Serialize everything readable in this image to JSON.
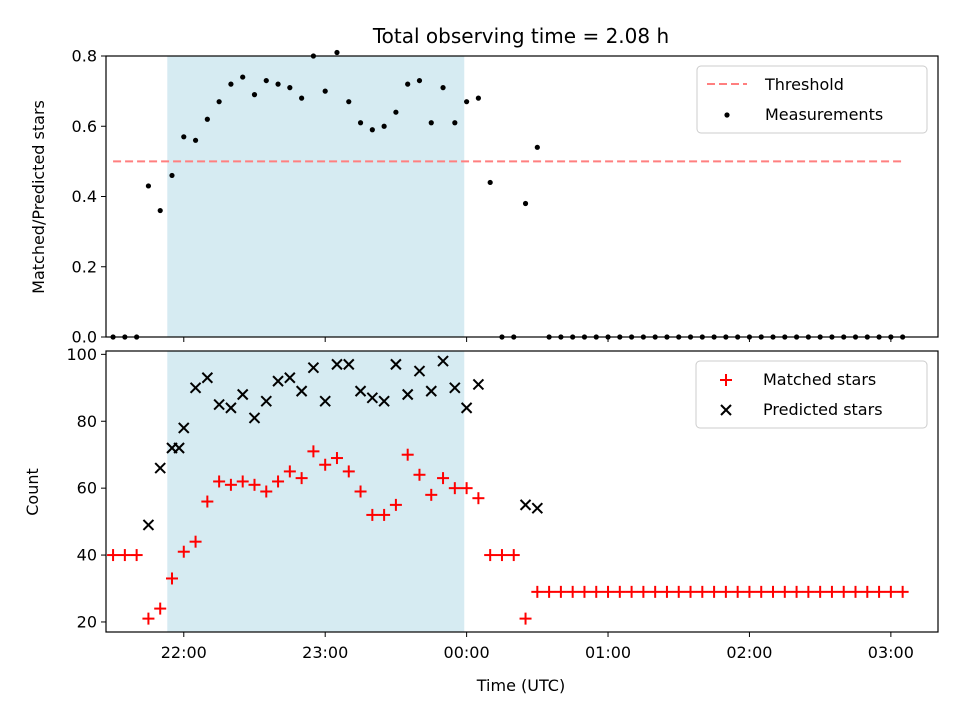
{
  "chart_data": [
    {
      "type": "scatter",
      "title": "Total observing time = 2.08 h",
      "ylabel": "Matched/Predicted stars",
      "xlim": [
        "21:27",
        "03:20"
      ],
      "ylim": [
        0,
        0.8
      ],
      "yticks": [
        "0.0",
        "0.2",
        "0.4",
        "0.6",
        "0.8"
      ],
      "xticks": [
        "22:00",
        "23:00",
        "00:00",
        "01:00",
        "02:00",
        "03:00"
      ],
      "xticks_labeled": false,
      "shaded_span": {
        "from": "21:53",
        "to": "23:59",
        "color": "#add8e6"
      },
      "legend_position": "upper right",
      "threshold": {
        "name": "Threshold",
        "value": 0.5,
        "from": "21:30",
        "to": "03:05",
        "color": "#ff7f7f",
        "style": "dashed"
      },
      "series": [
        {
          "name": "Measurements",
          "color": "#000000",
          "x": [
            "21:30",
            "21:35",
            "21:40",
            "21:45",
            "21:50",
            "21:55",
            "22:00",
            "22:05",
            "22:10",
            "22:15",
            "22:20",
            "22:25",
            "22:30",
            "22:35",
            "22:40",
            "22:45",
            "22:50",
            "22:55",
            "23:00",
            "23:05",
            "23:10",
            "23:15",
            "23:20",
            "23:25",
            "23:30",
            "23:35",
            "23:40",
            "23:45",
            "23:50",
            "23:55",
            "00:00",
            "00:05",
            "00:10",
            "00:15",
            "00:20",
            "00:25",
            "00:30",
            "00:35",
            "00:40",
            "00:45",
            "00:50",
            "00:55",
            "01:00",
            "01:05",
            "01:10",
            "01:15",
            "01:20",
            "01:25",
            "01:30",
            "01:35",
            "01:40",
            "01:45",
            "01:50",
            "01:55",
            "02:00",
            "02:05",
            "02:10",
            "02:15",
            "02:20",
            "02:25",
            "02:30",
            "02:35",
            "02:40",
            "02:45",
            "02:50",
            "02:55",
            "03:00",
            "03:05"
          ],
          "y": [
            0,
            0,
            0,
            0.43,
            0.36,
            0.46,
            0.57,
            0.56,
            0.62,
            0.67,
            0.72,
            0.74,
            0.69,
            0.73,
            0.72,
            0.71,
            0.68,
            0.8,
            0.7,
            0.81,
            0.67,
            0.61,
            0.59,
            0.6,
            0.64,
            0.72,
            0.73,
            0.61,
            0.71,
            0.61,
            0.67,
            0.68,
            0.44,
            0,
            0,
            0.38,
            0.54,
            0,
            0,
            0,
            0,
            0,
            0,
            0,
            0,
            0,
            0,
            0,
            0,
            0,
            0,
            0,
            0,
            0,
            0,
            0,
            0,
            0,
            0,
            0,
            0,
            0,
            0,
            0,
            0,
            0,
            0,
            0
          ]
        }
      ]
    },
    {
      "type": "scatter",
      "xlabel": "Time (UTC)",
      "ylabel": "Count",
      "xlim": [
        "21:27",
        "03:20"
      ],
      "ylim": [
        17,
        101
      ],
      "yticks": [
        "20",
        "40",
        "60",
        "80",
        "100"
      ],
      "xticks": [
        "22:00",
        "23:00",
        "00:00",
        "01:00",
        "02:00",
        "03:00"
      ],
      "shaded_span": {
        "from": "21:53",
        "to": "23:59",
        "color": "#add8e6"
      },
      "legend_position": "upper right",
      "series": [
        {
          "name": "Matched stars",
          "marker": "plus",
          "color": "#ff0000",
          "x": [
            "21:30",
            "21:35",
            "21:40",
            "21:45",
            "21:50",
            "21:55",
            "22:00",
            "22:05",
            "22:10",
            "22:15",
            "22:20",
            "22:25",
            "22:30",
            "22:35",
            "22:40",
            "22:45",
            "22:50",
            "22:55",
            "23:00",
            "23:05",
            "23:10",
            "23:15",
            "23:20",
            "23:25",
            "23:30",
            "23:35",
            "23:40",
            "23:45",
            "23:50",
            "23:55",
            "00:00",
            "00:05",
            "00:10",
            "00:15",
            "00:20",
            "00:25",
            "00:30",
            "00:35",
            "00:40",
            "00:45",
            "00:50",
            "00:55",
            "01:00",
            "01:05",
            "01:10",
            "01:15",
            "01:20",
            "01:25",
            "01:30",
            "01:35",
            "01:40",
            "01:45",
            "01:50",
            "01:55",
            "02:00",
            "02:05",
            "02:10",
            "02:15",
            "02:20",
            "02:25",
            "02:30",
            "02:35",
            "02:40",
            "02:45",
            "02:50",
            "02:55",
            "03:00",
            "03:05"
          ],
          "y": [
            40,
            40,
            40,
            21,
            24,
            33,
            41,
            44,
            56,
            62,
            61,
            62,
            61,
            59,
            62,
            65,
            63,
            71,
            67,
            69,
            65,
            59,
            52,
            52,
            55,
            70,
            64,
            58,
            63,
            60,
            60,
            57,
            40,
            40,
            40,
            21,
            29,
            29,
            29,
            29,
            29,
            29,
            29,
            29,
            29,
            29,
            29,
            29,
            29,
            29,
            29,
            29,
            29,
            29,
            29,
            29,
            29,
            29,
            29,
            29,
            29,
            29,
            29,
            29,
            29,
            29,
            29,
            29
          ]
        },
        {
          "name": "Predicted stars",
          "marker": "x",
          "color": "#000000",
          "x": [
            "21:45",
            "21:50",
            "21:55",
            "21:58",
            "22:00",
            "22:05",
            "22:10",
            "22:15",
            "22:20",
            "22:25",
            "22:30",
            "22:35",
            "22:40",
            "22:45",
            "22:50",
            "22:55",
            "23:00",
            "23:05",
            "23:10",
            "23:15",
            "23:20",
            "23:25",
            "23:30",
            "23:35",
            "23:40",
            "23:45",
            "23:50",
            "23:55",
            "00:00",
            "00:05",
            "00:10",
            "00:15",
            "00:20",
            "00:25",
            "00:30",
            "00:35",
            "00:40",
            "00:45",
            "00:50",
            "00:55",
            "01:00",
            "01:05",
            "01:10",
            "01:15",
            "01:20",
            "01:25",
            "01:30",
            "01:35",
            "01:40",
            "01:45",
            "01:50",
            "01:55",
            "02:00",
            "02:05",
            "02:10",
            "02:15",
            "02:20",
            "02:25",
            "02:30",
            "02:35",
            "02:40",
            "02:45",
            "02:50",
            "02:55",
            "03:00",
            "03:05",
            "03:10"
          ],
          "y": [
            49,
            66,
            72,
            72,
            78,
            90,
            93,
            85,
            84,
            88,
            81,
            86,
            92,
            93,
            89,
            96,
            86,
            97,
            97,
            89,
            87,
            86,
            97,
            88,
            95,
            89,
            98,
            90,
            84,
            91,
            null,
            null,
            null,
            55,
            54,
            null,
            null,
            null,
            null,
            null,
            null,
            null,
            null,
            null,
            null,
            null,
            null,
            null,
            null,
            null,
            null,
            null,
            null,
            null,
            null,
            null,
            null,
            null,
            null,
            null,
            null,
            null,
            null,
            null,
            null,
            null,
            null
          ]
        }
      ]
    }
  ]
}
